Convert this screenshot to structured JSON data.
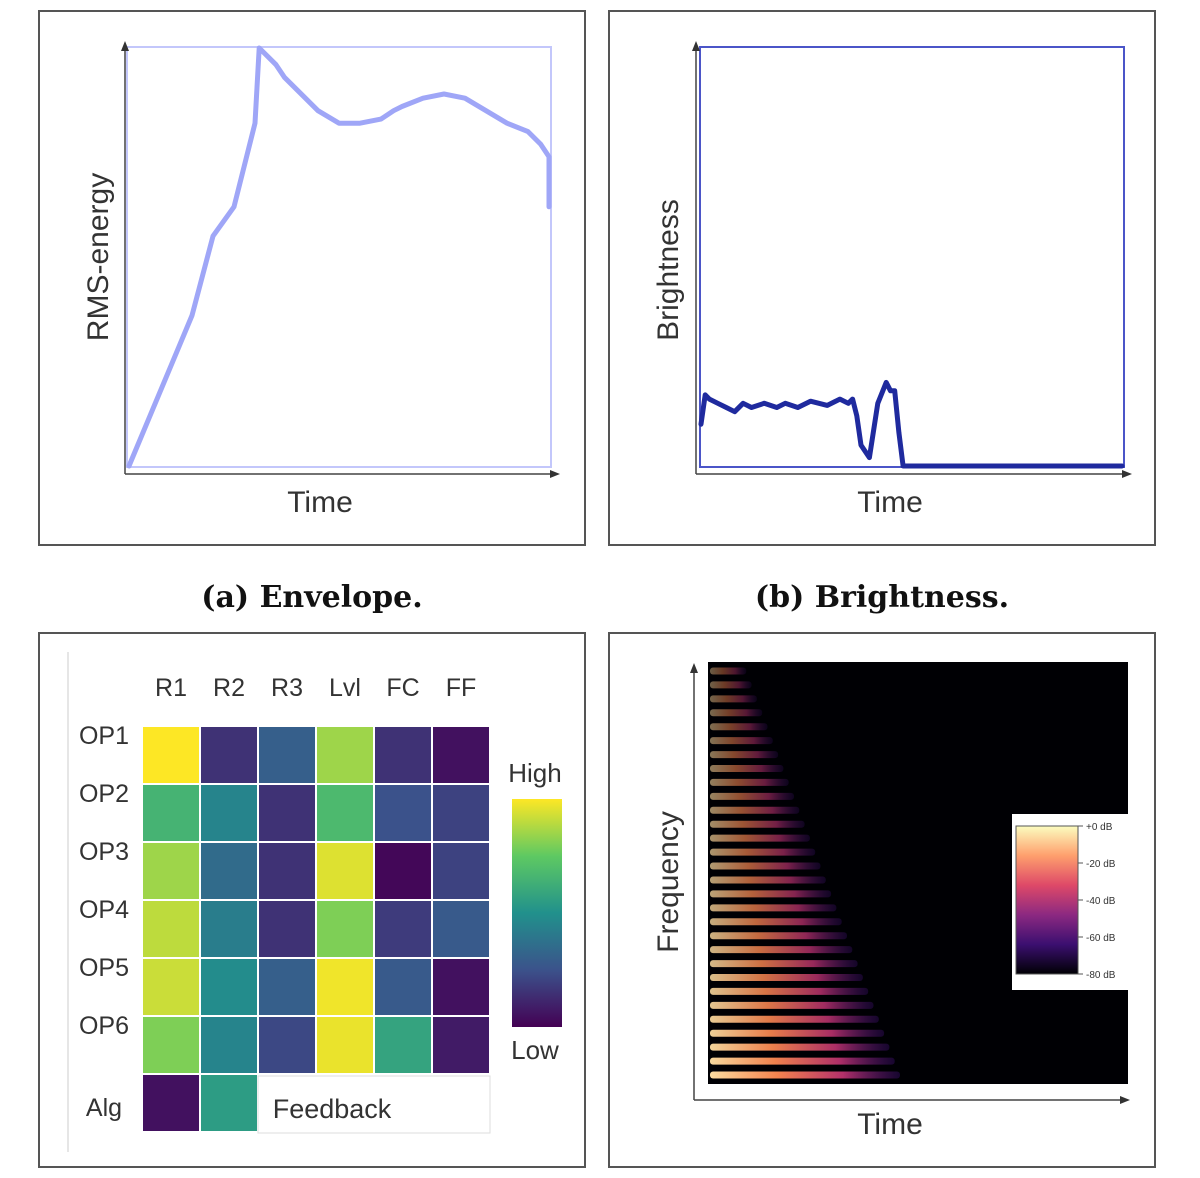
{
  "panels": {
    "envelope": {
      "caption": "(a) Envelope.",
      "line_color": "#9fa6f7"
    },
    "brightness": {
      "caption": "(b) Brightness.",
      "line_color": "#1f2a9e"
    },
    "heatmap": {
      "legend_high": "High",
      "legend_low": "Low",
      "feedback_label": "Feedback",
      "colormap": [
        "#440154",
        "#3b528b",
        "#21918c",
        "#5ec962",
        "#fde725"
      ]
    },
    "spectrogram": {
      "colorbar_ticks": [
        "+0 dB",
        "-20 dB",
        "-40 dB",
        "-60 dB",
        "-80 dB"
      ],
      "colormap": [
        "#000004",
        "#3b0f70",
        "#8c2981",
        "#de4968",
        "#fe9f6d",
        "#fcfdbf"
      ]
    }
  },
  "chart_data": [
    {
      "type": "line",
      "xlabel": "Time",
      "ylabel": "RMS-energy",
      "x": [
        0,
        0.05,
        0.1,
        0.15,
        0.2,
        0.25,
        0.3,
        0.31,
        0.35,
        0.37,
        0.4,
        0.45,
        0.5,
        0.55,
        0.6,
        0.63,
        0.65,
        0.7,
        0.75,
        0.8,
        0.85,
        0.9,
        0.95,
        0.98,
        1.0,
        1.0
      ],
      "y": [
        0.0,
        0.12,
        0.24,
        0.36,
        0.55,
        0.62,
        0.82,
        1.0,
        0.96,
        0.93,
        0.9,
        0.85,
        0.82,
        0.82,
        0.83,
        0.85,
        0.86,
        0.88,
        0.89,
        0.88,
        0.85,
        0.82,
        0.8,
        0.77,
        0.74,
        0.62
      ]
    },
    {
      "type": "line",
      "xlabel": "Time",
      "ylabel": "Brightness",
      "x": [
        0,
        0.01,
        0.02,
        0.04,
        0.06,
        0.08,
        0.1,
        0.12,
        0.15,
        0.18,
        0.2,
        0.23,
        0.26,
        0.28,
        0.3,
        0.33,
        0.35,
        0.36,
        0.37,
        0.38,
        0.4,
        0.42,
        0.44,
        0.45,
        0.46,
        0.47,
        0.48,
        1.0
      ],
      "y": [
        0.1,
        0.17,
        0.16,
        0.15,
        0.14,
        0.13,
        0.15,
        0.14,
        0.15,
        0.14,
        0.15,
        0.14,
        0.155,
        0.15,
        0.145,
        0.16,
        0.15,
        0.16,
        0.12,
        0.05,
        0.02,
        0.15,
        0.2,
        0.18,
        0.18,
        0.08,
        0.0,
        0.0
      ]
    },
    {
      "type": "heatmap",
      "columns": [
        "R1",
        "R2",
        "R3",
        "Lvl",
        "FC",
        "FF"
      ],
      "rows": [
        "OP1",
        "OP2",
        "OP3",
        "OP4",
        "OP5",
        "OP6"
      ],
      "values": [
        [
          1.0,
          0.15,
          0.3,
          0.85,
          0.15,
          0.05
        ],
        [
          0.65,
          0.45,
          0.15,
          0.68,
          0.25,
          0.2
        ],
        [
          0.85,
          0.35,
          0.15,
          0.95,
          0.02,
          0.2
        ],
        [
          0.9,
          0.42,
          0.15,
          0.8,
          0.18,
          0.28
        ],
        [
          0.92,
          0.48,
          0.3,
          0.98,
          0.28,
          0.05
        ],
        [
          0.8,
          0.45,
          0.22,
          0.97,
          0.58,
          0.08
        ]
      ],
      "extra_row": {
        "label": "Alg",
        "values": [
          0.05,
          0.55
        ]
      }
    },
    {
      "type": "heatmap",
      "xlabel": "Time",
      "ylabel": "Frequency",
      "colorbar_range_db": [
        -80,
        0
      ],
      "description": "harmonic spectrogram"
    }
  ]
}
